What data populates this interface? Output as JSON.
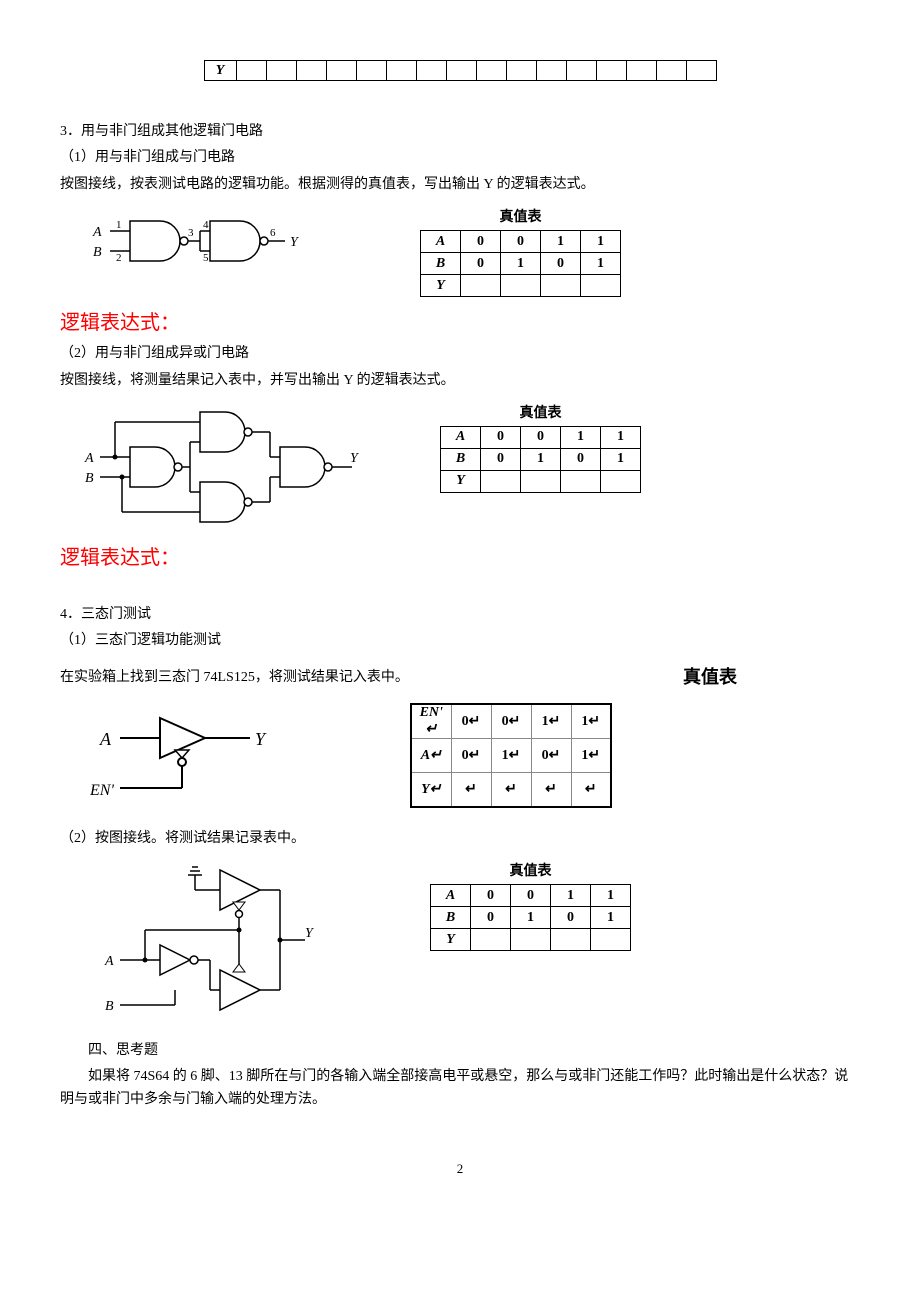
{
  "topTable": {
    "rowLabel": "Y",
    "cols": 16
  },
  "section3": {
    "title": "3．用与非门组成其他逻辑门电路",
    "sub1": {
      "heading": "（1）用与非门组成与门电路",
      "instr": "按图接线，按表测试电路的逻辑功能。根据测得的真值表，写出输出 Y 的逻辑表达式。",
      "pins": {
        "a": "A",
        "b": "B",
        "p1": "1",
        "p2": "2",
        "p3": "3",
        "p4": "4",
        "p5": "5",
        "p6": "6",
        "y": "Y"
      },
      "truth": {
        "caption": "真值表",
        "rows": [
          {
            "label": "A",
            "vals": [
              "0",
              "0",
              "1",
              "1"
            ]
          },
          {
            "label": "B",
            "vals": [
              "0",
              "1",
              "0",
              "1"
            ]
          },
          {
            "label": "Y",
            "vals": [
              "",
              "",
              "",
              ""
            ]
          }
        ]
      },
      "expr": "逻辑表达式："
    },
    "sub2": {
      "heading": "（2）用与非门组成异或门电路",
      "instr": "按图接线，将测量结果记入表中，并写出输出 Y 的逻辑表达式。",
      "labels": {
        "a": "A",
        "b": "B",
        "y": "Y"
      },
      "truth": {
        "caption": "真值表",
        "rows": [
          {
            "label": "A",
            "vals": [
              "0",
              "0",
              "1",
              "1"
            ]
          },
          {
            "label": "B",
            "vals": [
              "0",
              "1",
              "0",
              "1"
            ]
          },
          {
            "label": "Y",
            "vals": [
              "",
              "",
              "",
              ""
            ]
          }
        ]
      },
      "expr": "逻辑表达式："
    }
  },
  "section4": {
    "title": "4．三态门测试",
    "sub1": {
      "heading": "（1）三态门逻辑功能测试",
      "instr": "在实验箱上找到三态门 74LS125，将测试结果记入表中。",
      "labels": {
        "a": "A",
        "en": "EN'",
        "y": "Y"
      },
      "truth": {
        "caption": "真值表",
        "rows": [
          {
            "label": "EN' ↵",
            "vals": [
              "0↵",
              "0↵",
              "1↵",
              "1↵"
            ]
          },
          {
            "label": "A↵",
            "vals": [
              "0↵",
              "1↵",
              "0↵",
              "1↵"
            ]
          },
          {
            "label": "Y↵",
            "vals": [
              "↵",
              "↵",
              "↵",
              "↵"
            ]
          }
        ]
      }
    },
    "sub2": {
      "heading": "（2）按图接线。将测试结果记录表中。",
      "labels": {
        "a": "A",
        "b": "B",
        "y": "Y"
      },
      "truth": {
        "caption": "真值表",
        "rows": [
          {
            "label": "A",
            "vals": [
              "0",
              "0",
              "1",
              "1"
            ]
          },
          {
            "label": "B",
            "vals": [
              "0",
              "1",
              "0",
              "1"
            ]
          },
          {
            "label": "Y",
            "vals": [
              "",
              "",
              "",
              ""
            ]
          }
        ]
      }
    }
  },
  "section5": {
    "title": "四、思考题",
    "q": "如果将 74S64 的 6 脚、13 脚所在与门的各输入端全部接高电平或悬空，那么与或非门还能工作吗？此时输出是什么状态？说明与或非门中多余与门输入端的处理方法。"
  },
  "pageNum": "2",
  "colors": {
    "stroke": "#000",
    "red": "#ff0000"
  }
}
